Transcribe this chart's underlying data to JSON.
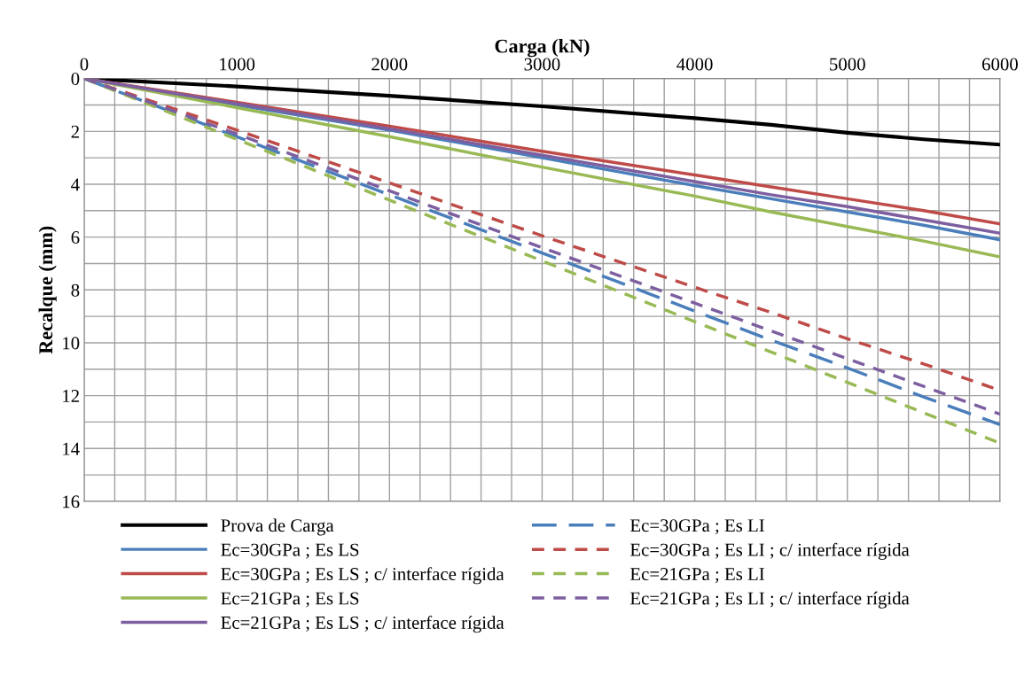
{
  "chart_data": {
    "type": "line",
    "xlabel": "Carga (kN)",
    "ylabel": "Recalque (mm)",
    "x": [
      0,
      1000,
      2000,
      3000,
      4000,
      4500,
      5000,
      5500,
      6000
    ],
    "series": [
      {
        "name": "Prova de Carga",
        "color": "#000000",
        "values": [
          0,
          0.3,
          0.65,
          1.05,
          1.5,
          1.75,
          2.05,
          2.3,
          2.5
        ]
      },
      {
        "name": "Ec=30GPa ; Es LS",
        "color": "#4a7ebb",
        "values": [
          0,
          1.0,
          1.95,
          3.0,
          4.05,
          4.55,
          5.05,
          5.55,
          6.1
        ]
      },
      {
        "name": "Ec=30GPa ; Es LS ; c/ interface rígida",
        "color": "#be4b48",
        "values": [
          0,
          0.9,
          1.8,
          2.75,
          3.65,
          4.1,
          4.55,
          5.0,
          5.5
        ]
      },
      {
        "name": "Ec=21GPa ; Es LS",
        "color": "#98b954",
        "values": [
          0,
          1.1,
          2.2,
          3.35,
          4.45,
          5.05,
          5.6,
          6.15,
          6.75
        ]
      },
      {
        "name": "Ec=21GPa ; Es LS ; c/ interface rígida",
        "color": "#7d5fa0",
        "values": [
          0,
          0.95,
          1.9,
          2.9,
          3.9,
          4.4,
          4.85,
          5.35,
          5.85
        ]
      },
      {
        "name": "Ec=30GPa ; Es LI",
        "color": "#4a7ebb",
        "line_style": "dashed",
        "values": [
          0,
          2.2,
          4.4,
          6.6,
          8.8,
          9.9,
          10.95,
          12.05,
          13.1
        ]
      },
      {
        "name": "Ec=30GPa ; Es LI ; c/ interface rígida",
        "color": "#be4b48",
        "line_style": "dotted",
        "values": [
          0,
          1.95,
          3.95,
          5.95,
          7.9,
          8.85,
          9.85,
          10.8,
          11.8
        ]
      },
      {
        "name": "Ec=21GPa ; Es LI",
        "color": "#98b954",
        "line_style": "dotted",
        "values": [
          0,
          2.3,
          4.6,
          6.9,
          9.2,
          10.35,
          11.5,
          12.65,
          13.8
        ]
      },
      {
        "name": "Ec=21GPa ; Es LI ; c/ interface rígida",
        "color": "#7d5fa0",
        "line_style": "dotted",
        "values": [
          0,
          2.1,
          4.25,
          6.4,
          8.5,
          9.55,
          10.6,
          11.65,
          12.7
        ]
      }
    ],
    "xlim": [
      0,
      6000
    ],
    "ylim": [
      16,
      0
    ],
    "xticks": [
      0,
      {
        "value": 200,
        "label": null
      },
      {
        "value": 400,
        "label": null
      },
      {
        "value": 600,
        "label": null
      },
      {
        "value": 800,
        "label": null
      },
      1000,
      {
        "value": 1200,
        "label": null
      },
      {
        "value": 1400,
        "label": null
      },
      {
        "value": 1600,
        "label": null
      },
      {
        "value": 1800,
        "label": null
      },
      2000,
      {
        "value": 2200,
        "label": null
      },
      {
        "value": 2400,
        "label": null
      },
      {
        "value": 2600,
        "label": null
      },
      {
        "value": 2800,
        "label": null
      },
      3000,
      {
        "value": 3200,
        "label": null
      },
      {
        "value": 3400,
        "label": null
      },
      {
        "value": 3600,
        "label": null
      },
      {
        "value": 3800,
        "label": null
      },
      4000,
      {
        "value": 4200,
        "label": null
      },
      {
        "value": 4400,
        "label": null
      },
      {
        "value": 4600,
        "label": null
      },
      {
        "value": 4800,
        "label": null
      },
      5000,
      {
        "value": 5200,
        "label": null
      },
      {
        "value": 5400,
        "label": null
      },
      {
        "value": 5600,
        "label": null
      },
      {
        "value": 5800,
        "label": null
      },
      6000
    ],
    "yticks": [
      0,
      {
        "value": 1,
        "label": null
      },
      2,
      {
        "value": 3,
        "label": null
      },
      4,
      {
        "value": 5,
        "label": null
      },
      6,
      {
        "value": 7,
        "label": null
      },
      8,
      {
        "value": 9,
        "label": null
      },
      10,
      {
        "value": 11,
        "label": null
      },
      12,
      {
        "value": 13,
        "label": null
      },
      14,
      {
        "value": 15,
        "label": null
      },
      16
    ],
    "grid": true,
    "legend": "bottom",
    "marker": "none"
  }
}
